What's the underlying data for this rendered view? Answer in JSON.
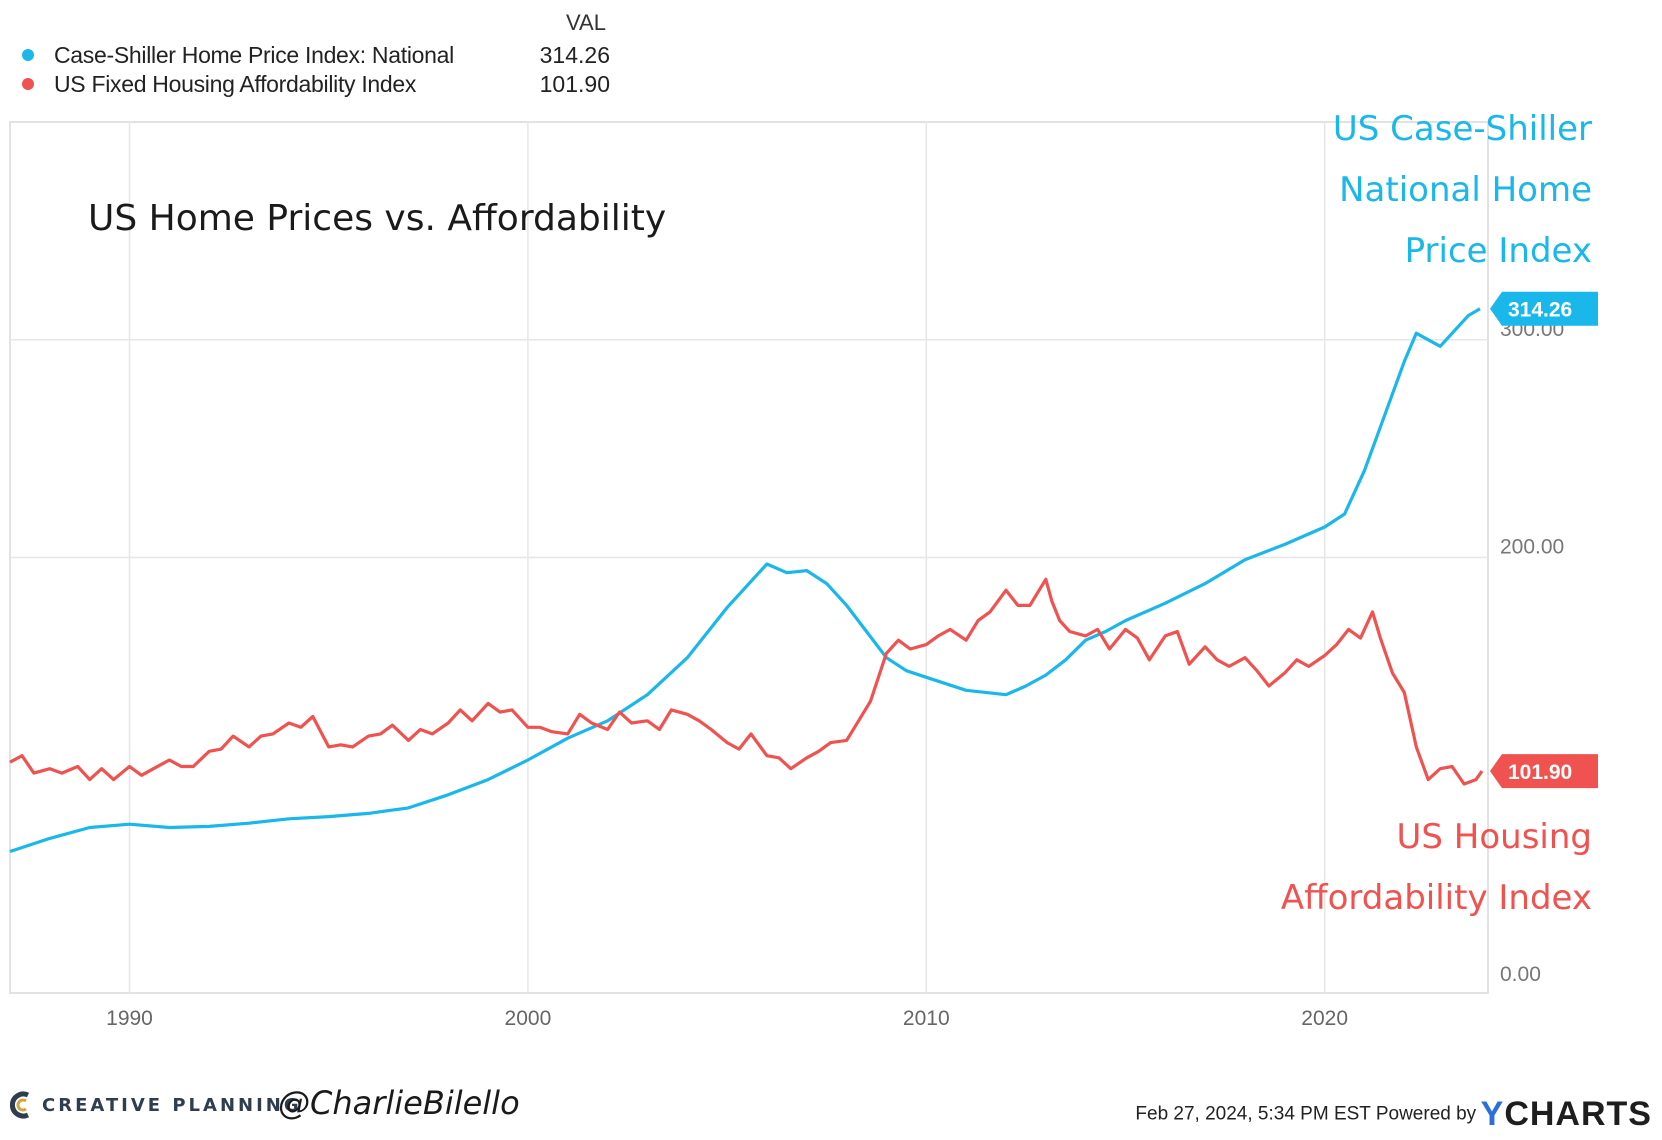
{
  "legend": {
    "value_header": "VAL",
    "items": [
      {
        "name": "Case-Shiller Home Price Index: National",
        "value": "314.26",
        "color": "#1ab7ea"
      },
      {
        "name": "US Fixed Housing Affordability Index",
        "value": "101.90",
        "color": "#f0524f"
      }
    ]
  },
  "chart_data": {
    "type": "line",
    "title": "US Home Prices vs. Affordability",
    "x_ticks": [
      "1990",
      "2000",
      "2010",
      "2020"
    ],
    "y_ticks": [
      "0.00",
      "200.00",
      "300.00"
    ],
    "xlim": [
      1987.0,
      2024.1
    ],
    "ylim": [
      0,
      400
    ],
    "grid": true,
    "series": [
      {
        "name": "Case-Shiller Home Price Index: National",
        "color": "#1ab7ea",
        "end_label": "314.26",
        "annotation_lines": [
          "US Case-Shiller",
          "National Home",
          "Price Index"
        ],
        "points": [
          [
            1987.0,
            65
          ],
          [
            1988.0,
            71
          ],
          [
            1989.0,
            76
          ],
          [
            1990.0,
            77.5
          ],
          [
            1991.0,
            76
          ],
          [
            1992.0,
            76.5
          ],
          [
            1993.0,
            78
          ],
          [
            1994.0,
            80
          ],
          [
            1995.0,
            81
          ],
          [
            1996.0,
            82.5
          ],
          [
            1997.0,
            85
          ],
          [
            1998.0,
            91
          ],
          [
            1999.0,
            98
          ],
          [
            2000.0,
            107
          ],
          [
            2001.0,
            117
          ],
          [
            2002.0,
            125
          ],
          [
            2003.0,
            137
          ],
          [
            2004.0,
            154
          ],
          [
            2005.0,
            177
          ],
          [
            2006.0,
            197
          ],
          [
            2006.5,
            193
          ],
          [
            2007.0,
            194
          ],
          [
            2007.5,
            188
          ],
          [
            2008.0,
            178
          ],
          [
            2008.5,
            166
          ],
          [
            2009.0,
            154
          ],
          [
            2009.5,
            148
          ],
          [
            2010.0,
            145
          ],
          [
            2011.0,
            139
          ],
          [
            2012.0,
            137
          ],
          [
            2012.5,
            141
          ],
          [
            2013.0,
            146
          ],
          [
            2013.5,
            153
          ],
          [
            2014.0,
            162
          ],
          [
            2014.5,
            166
          ],
          [
            2015.0,
            171
          ],
          [
            2016.0,
            179
          ],
          [
            2017.0,
            188
          ],
          [
            2018.0,
            199
          ],
          [
            2019.0,
            206
          ],
          [
            2020.0,
            214
          ],
          [
            2020.5,
            220
          ],
          [
            2021.0,
            240
          ],
          [
            2021.5,
            265
          ],
          [
            2022.0,
            290
          ],
          [
            2022.3,
            303
          ],
          [
            2022.6,
            300
          ],
          [
            2022.9,
            297
          ],
          [
            2023.3,
            305
          ],
          [
            2023.6,
            311
          ],
          [
            2023.9,
            314.26
          ]
        ]
      },
      {
        "name": "US Fixed Housing Affordability Index",
        "color": "#f0524f",
        "end_label": "101.90",
        "annotation_lines": [
          "US Housing",
          "Affordability Index"
        ],
        "points": [
          [
            1987.0,
            106
          ],
          [
            1987.3,
            109
          ],
          [
            1987.6,
            101
          ],
          [
            1988.0,
            103
          ],
          [
            1988.3,
            101
          ],
          [
            1988.7,
            104
          ],
          [
            1989.0,
            98
          ],
          [
            1989.3,
            103
          ],
          [
            1989.6,
            98
          ],
          [
            1990.0,
            104
          ],
          [
            1990.3,
            100
          ],
          [
            1990.6,
            103
          ],
          [
            1991.0,
            107
          ],
          [
            1991.3,
            104
          ],
          [
            1991.6,
            104
          ],
          [
            1992.0,
            111
          ],
          [
            1992.3,
            112
          ],
          [
            1992.6,
            118
          ],
          [
            1993.0,
            113
          ],
          [
            1993.3,
            118
          ],
          [
            1993.6,
            119
          ],
          [
            1994.0,
            124
          ],
          [
            1994.3,
            122
          ],
          [
            1994.6,
            127
          ],
          [
            1995.0,
            113
          ],
          [
            1995.3,
            114
          ],
          [
            1995.6,
            113
          ],
          [
            1996.0,
            118
          ],
          [
            1996.3,
            119
          ],
          [
            1996.6,
            123
          ],
          [
            1997.0,
            116
          ],
          [
            1997.3,
            121
          ],
          [
            1997.6,
            119
          ],
          [
            1998.0,
            124
          ],
          [
            1998.3,
            130
          ],
          [
            1998.6,
            125
          ],
          [
            1999.0,
            133
          ],
          [
            1999.3,
            129
          ],
          [
            1999.6,
            130
          ],
          [
            2000.0,
            122
          ],
          [
            2000.3,
            122
          ],
          [
            2000.6,
            120
          ],
          [
            2001.0,
            119
          ],
          [
            2001.3,
            128
          ],
          [
            2001.6,
            124
          ],
          [
            2002.0,
            121
          ],
          [
            2002.3,
            129
          ],
          [
            2002.6,
            124
          ],
          [
            2003.0,
            125
          ],
          [
            2003.3,
            121
          ],
          [
            2003.6,
            130
          ],
          [
            2004.0,
            128
          ],
          [
            2004.3,
            125
          ],
          [
            2004.6,
            121
          ],
          [
            2005.0,
            115
          ],
          [
            2005.3,
            112
          ],
          [
            2005.6,
            119
          ],
          [
            2006.0,
            109
          ],
          [
            2006.3,
            108
          ],
          [
            2006.6,
            103
          ],
          [
            2007.0,
            108
          ],
          [
            2007.3,
            111
          ],
          [
            2007.6,
            115
          ],
          [
            2008.0,
            116
          ],
          [
            2008.3,
            125
          ],
          [
            2008.6,
            134
          ],
          [
            2009.0,
            156
          ],
          [
            2009.3,
            162
          ],
          [
            2009.6,
            158
          ],
          [
            2010.0,
            160
          ],
          [
            2010.3,
            164
          ],
          [
            2010.6,
            167
          ],
          [
            2011.0,
            162
          ],
          [
            2011.3,
            171
          ],
          [
            2011.6,
            175
          ],
          [
            2012.0,
            185
          ],
          [
            2012.3,
            178
          ],
          [
            2012.6,
            178
          ],
          [
            2013.0,
            190
          ],
          [
            2013.15,
            180
          ],
          [
            2013.35,
            171
          ],
          [
            2013.6,
            166
          ],
          [
            2014.0,
            164
          ],
          [
            2014.3,
            167
          ],
          [
            2014.6,
            158
          ],
          [
            2015.0,
            167
          ],
          [
            2015.3,
            163
          ],
          [
            2015.6,
            153
          ],
          [
            2016.0,
            164
          ],
          [
            2016.3,
            166
          ],
          [
            2016.6,
            151
          ],
          [
            2017.0,
            159
          ],
          [
            2017.3,
            153
          ],
          [
            2017.6,
            150
          ],
          [
            2018.0,
            154
          ],
          [
            2018.3,
            148
          ],
          [
            2018.6,
            141
          ],
          [
            2019.0,
            147
          ],
          [
            2019.3,
            153
          ],
          [
            2019.6,
            150
          ],
          [
            2020.0,
            155
          ],
          [
            2020.3,
            160
          ],
          [
            2020.6,
            167
          ],
          [
            2020.9,
            163
          ],
          [
            2021.2,
            175
          ],
          [
            2021.4,
            163
          ],
          [
            2021.7,
            147
          ],
          [
            2022.0,
            138
          ],
          [
            2022.3,
            113
          ],
          [
            2022.6,
            98
          ],
          [
            2022.9,
            103
          ],
          [
            2023.2,
            104
          ],
          [
            2023.5,
            96
          ],
          [
            2023.8,
            98
          ],
          [
            2023.95,
            101.9
          ]
        ]
      }
    ]
  },
  "footer": {
    "brand": "CREATIVE PLANNING",
    "handle": "@CharlieBilello",
    "timestamp": "Feb 27, 2024, 5:34 PM EST Powered by",
    "ycharts_y": "Y",
    "ycharts_rest": "CHARTS"
  }
}
